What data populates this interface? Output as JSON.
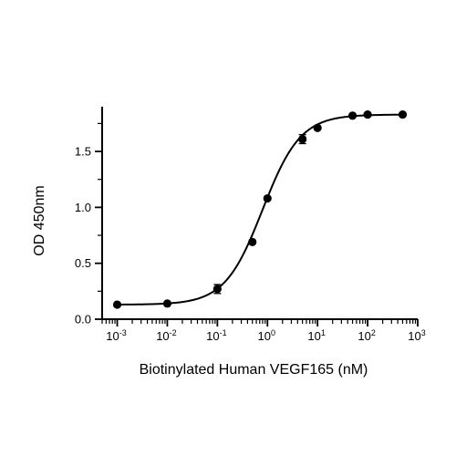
{
  "chart_data": {
    "type": "scatter",
    "title": "",
    "xlabel": "Biotinylated Human VEGF165 (nM)",
    "ylabel": "OD 450nm",
    "x_scale": "log",
    "xlim": [
      0.0005,
      1000
    ],
    "ylim": [
      0,
      1.9
    ],
    "x_tick_values": [
      0.001,
      0.01,
      0.1,
      1,
      10,
      100,
      1000
    ],
    "x_tick_labels": [
      {
        "base": "10",
        "exp": "-3"
      },
      {
        "base": "10",
        "exp": "-2"
      },
      {
        "base": "10",
        "exp": "-1"
      },
      {
        "base": "10",
        "exp": "0"
      },
      {
        "base": "10",
        "exp": "1"
      },
      {
        "base": "10",
        "exp": "2"
      },
      {
        "base": "10",
        "exp": "3"
      }
    ],
    "y_ticks": [
      {
        "value": 0.0,
        "label": "0.0"
      },
      {
        "value": 0.5,
        "label": "0.5"
      },
      {
        "value": 1.0,
        "label": "1.0"
      },
      {
        "value": 1.5,
        "label": "1.5"
      }
    ],
    "series": [
      {
        "x": [
          0.001,
          0.01,
          0.1,
          0.5,
          1,
          5,
          10,
          50,
          100,
          500
        ],
        "y": [
          0.13,
          0.14,
          0.27,
          0.69,
          1.08,
          1.61,
          1.71,
          1.82,
          1.83,
          1.83
        ],
        "error": [
          0.01,
          0.01,
          0.04,
          0.01,
          0.01,
          0.04,
          0.01,
          0.01,
          0.01,
          0.01
        ]
      }
    ],
    "fit_curve": {
      "type": "4PL",
      "bottom": 0.13,
      "top": 1.83,
      "ec50": 0.8,
      "hill": 1.15
    },
    "grid": false,
    "legend": "none"
  }
}
